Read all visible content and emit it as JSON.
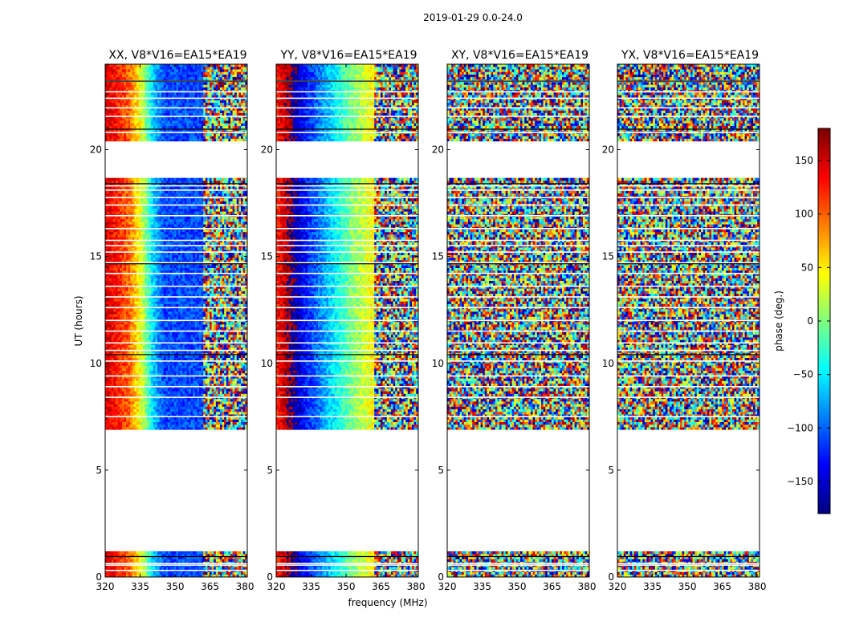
{
  "chart_data": {
    "type": "heatmap",
    "suptitle": "2019-01-29 0.0-24.0",
    "xlabel": "frequency (MHz)",
    "ylabel": "UT (hours)",
    "xlim": [
      320,
      381
    ],
    "ylim": [
      0,
      24
    ],
    "xticks": [
      320,
      335,
      350,
      365,
      380
    ],
    "yticks": [
      0,
      5,
      10,
      15,
      20
    ],
    "colorbar": {
      "label": "phase (deg.)",
      "range": [
        -180,
        180
      ],
      "ticks": [
        150,
        100,
        50,
        0,
        -50,
        -100,
        -150
      ],
      "tick_labels": [
        "150",
        "100",
        "50",
        "0",
        "−50",
        "−100",
        "−150"
      ],
      "colormap": "jet"
    },
    "data_time_ranges_hours": [
      [
        0.0,
        1.1
      ],
      [
        6.9,
        18.6
      ],
      [
        20.4,
        24.0
      ]
    ],
    "panels": [
      {
        "title": "XX, V8*V16=EA15*EA19",
        "phase_model": "wrapped phase gradient: ~150 deg at 320 MHz decreasing through ~0 deg near 340 MHz to ~-100 deg by 345 MHz, noisy above 362 MHz",
        "gradient_deg": [
          [
            320,
            150
          ],
          [
            330,
            100
          ],
          [
            336,
            20
          ],
          [
            340,
            -60
          ],
          [
            345,
            -110
          ],
          [
            362,
            -110
          ]
        ],
        "noise_start_mhz": 362
      },
      {
        "title": "YY, V8*V16=EA15*EA19",
        "phase_model": "wrapped phase gradient: ~130 deg at 320 MHz through -130 deg near 330 MHz to ~40 deg near 362 MHz, noisy above 362 MHz",
        "gradient_deg": [
          [
            320,
            130
          ],
          [
            325,
            170
          ],
          [
            327,
            -170
          ],
          [
            332,
            -130
          ],
          [
            340,
            -80
          ],
          [
            352,
            0
          ],
          [
            362,
            50
          ]
        ],
        "noise_start_mhz": 362
      },
      {
        "title": "XY, V8*V16=EA15*EA19",
        "phase_model": "random noise across all frequencies",
        "gradient_deg": [],
        "noise_start_mhz": 320
      },
      {
        "title": "YX, V8*V16=EA15*EA19",
        "phase_model": "random noise across all frequencies",
        "gradient_deg": [],
        "noise_start_mhz": 320
      }
    ]
  }
}
